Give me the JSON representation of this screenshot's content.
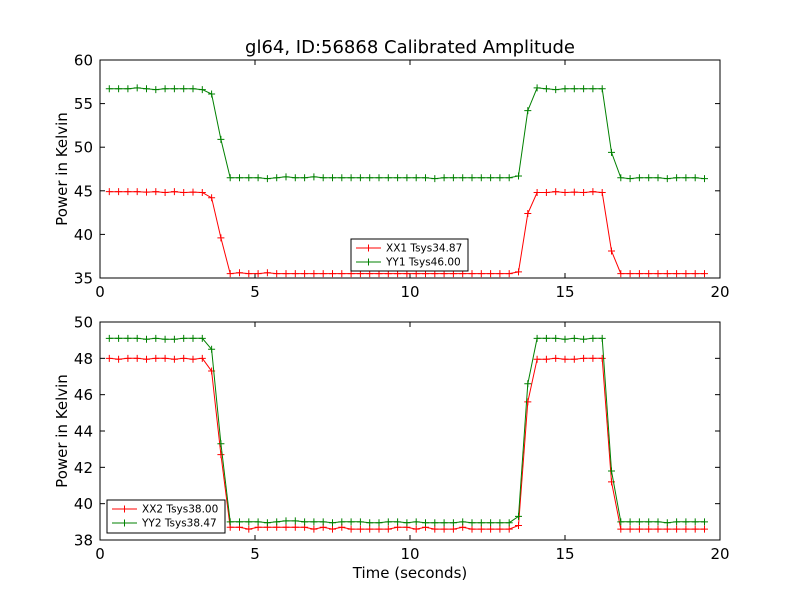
{
  "figure_title": "gl64, ID:56868 Calibrated Amplitude",
  "chart_data": [
    {
      "type": "line",
      "title": "gl64, ID:56868 Calibrated Amplitude",
      "xlabel": "",
      "ylabel": "Power in Kelvin",
      "xlim": [
        0,
        20
      ],
      "ylim": [
        35,
        60
      ],
      "xticks": [
        "0",
        "5",
        "10",
        "15",
        "20"
      ],
      "yticks": [
        "35",
        "40",
        "45",
        "50",
        "55",
        "60"
      ],
      "grid": false,
      "legend": "bottom-center",
      "x": [
        0.3,
        0.6,
        0.9,
        1.2,
        1.5,
        1.8,
        2.1,
        2.4,
        2.7,
        3.0,
        3.3,
        3.6,
        3.9,
        4.2,
        4.5,
        4.8,
        5.1,
        5.4,
        5.7,
        6.0,
        6.3,
        6.6,
        6.9,
        7.2,
        7.5,
        7.8,
        8.1,
        8.4,
        8.7,
        9.0,
        9.3,
        9.6,
        9.9,
        10.2,
        10.5,
        10.8,
        11.1,
        11.4,
        11.7,
        12.0,
        12.3,
        12.6,
        12.9,
        13.2,
        13.5,
        13.8,
        14.1,
        14.4,
        14.7,
        15.0,
        15.3,
        15.6,
        15.9,
        16.2,
        16.5,
        16.8,
        17.1,
        17.4,
        17.7,
        18.0,
        18.3,
        18.6,
        18.9,
        19.2,
        19.5
      ],
      "series": [
        {
          "name": "XX1 Tsys34.87",
          "color": "#ff0000",
          "values": [
            44.9,
            44.9,
            44.9,
            44.9,
            44.85,
            44.9,
            44.8,
            44.9,
            44.8,
            44.85,
            44.8,
            44.2,
            39.6,
            35.5,
            35.6,
            35.5,
            35.5,
            35.6,
            35.5,
            35.5,
            35.5,
            35.5,
            35.5,
            35.5,
            35.5,
            35.5,
            35.5,
            35.5,
            35.5,
            35.5,
            35.5,
            35.5,
            35.5,
            35.5,
            35.5,
            35.5,
            35.5,
            35.5,
            35.5,
            35.5,
            35.5,
            35.5,
            35.5,
            35.5,
            35.7,
            42.4,
            44.8,
            44.8,
            44.9,
            44.8,
            44.85,
            44.8,
            44.9,
            44.8,
            38.1,
            35.5,
            35.5,
            35.5,
            35.5,
            35.5,
            35.5,
            35.5,
            35.5,
            35.5,
            35.5
          ]
        },
        {
          "name": "YY1 Tsys46.00",
          "color": "#008000",
          "values": [
            56.7,
            56.7,
            56.7,
            56.8,
            56.7,
            56.6,
            56.7,
            56.7,
            56.7,
            56.7,
            56.6,
            56.1,
            50.9,
            46.5,
            46.5,
            46.5,
            46.5,
            46.4,
            46.5,
            46.6,
            46.5,
            46.5,
            46.6,
            46.5,
            46.5,
            46.5,
            46.5,
            46.5,
            46.5,
            46.5,
            46.5,
            46.5,
            46.5,
            46.5,
            46.5,
            46.4,
            46.5,
            46.5,
            46.5,
            46.5,
            46.5,
            46.5,
            46.5,
            46.5,
            46.7,
            54.2,
            56.8,
            56.7,
            56.6,
            56.7,
            56.7,
            56.7,
            56.7,
            56.7,
            49.4,
            46.5,
            46.4,
            46.5,
            46.5,
            46.5,
            46.4,
            46.5,
            46.5,
            46.5,
            46.4
          ]
        }
      ]
    },
    {
      "type": "line",
      "title": "",
      "xlabel": "Time (seconds)",
      "ylabel": "Power in Kelvin",
      "xlim": [
        0,
        20
      ],
      "ylim": [
        38,
        50
      ],
      "xticks": [
        "0",
        "5",
        "10",
        "15",
        "20"
      ],
      "yticks": [
        "38",
        "40",
        "42",
        "44",
        "46",
        "48",
        "50"
      ],
      "grid": false,
      "legend": "bottom-left",
      "x": [
        0.3,
        0.6,
        0.9,
        1.2,
        1.5,
        1.8,
        2.1,
        2.4,
        2.7,
        3.0,
        3.3,
        3.6,
        3.9,
        4.2,
        4.5,
        4.8,
        5.1,
        5.4,
        5.7,
        6.0,
        6.3,
        6.6,
        6.9,
        7.2,
        7.5,
        7.8,
        8.1,
        8.4,
        8.7,
        9.0,
        9.3,
        9.6,
        9.9,
        10.2,
        10.5,
        10.8,
        11.1,
        11.4,
        11.7,
        12.0,
        12.3,
        12.6,
        12.9,
        13.2,
        13.5,
        13.8,
        14.1,
        14.4,
        14.7,
        15.0,
        15.3,
        15.6,
        15.9,
        16.2,
        16.5,
        16.8,
        17.1,
        17.4,
        17.7,
        18.0,
        18.3,
        18.6,
        18.9,
        19.2,
        19.5
      ],
      "series": [
        {
          "name": "XX2 Tsys38.00",
          "color": "#ff0000",
          "values": [
            48.0,
            47.95,
            48.0,
            48.0,
            47.95,
            48.0,
            48.0,
            47.95,
            48.0,
            47.95,
            48.0,
            47.3,
            42.7,
            38.7,
            38.7,
            38.6,
            38.7,
            38.7,
            38.7,
            38.7,
            38.7,
            38.7,
            38.6,
            38.7,
            38.6,
            38.7,
            38.6,
            38.6,
            38.6,
            38.6,
            38.6,
            38.7,
            38.7,
            38.6,
            38.7,
            38.6,
            38.6,
            38.6,
            38.7,
            38.6,
            38.6,
            38.6,
            38.6,
            38.6,
            38.8,
            45.6,
            47.95,
            47.95,
            48.0,
            47.95,
            47.95,
            48.0,
            48.0,
            48.0,
            41.2,
            38.6,
            38.6,
            38.6,
            38.6,
            38.6,
            38.6,
            38.6,
            38.6,
            38.6,
            38.6
          ]
        },
        {
          "name": "YY2 Tsys38.47",
          "color": "#008000",
          "values": [
            49.1,
            49.1,
            49.1,
            49.1,
            49.05,
            49.1,
            49.05,
            49.05,
            49.1,
            49.1,
            49.1,
            48.5,
            43.3,
            39.0,
            39.0,
            39.0,
            39.0,
            38.95,
            39.0,
            39.05,
            39.05,
            39.0,
            39.0,
            39.0,
            38.95,
            39.0,
            39.0,
            39.0,
            38.95,
            38.95,
            39.0,
            39.0,
            38.95,
            39.0,
            38.95,
            38.95,
            38.95,
            38.95,
            39.0,
            38.95,
            38.95,
            38.95,
            38.95,
            38.95,
            39.3,
            46.6,
            49.1,
            49.1,
            49.1,
            49.05,
            49.1,
            49.05,
            49.1,
            49.1,
            41.8,
            39.0,
            39.0,
            39.0,
            39.0,
            39.0,
            38.95,
            39.0,
            39.0,
            39.0,
            39.0
          ]
        }
      ]
    }
  ]
}
